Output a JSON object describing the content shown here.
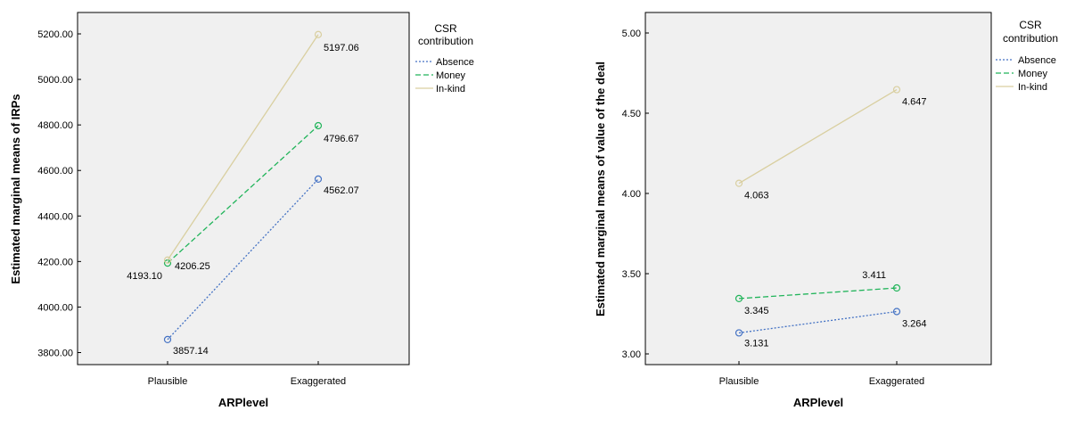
{
  "chart_data": [
    {
      "type": "line",
      "xlabel": "ARPlevel",
      "ylabel": "Estimated marginal means of IRPs",
      "categories": [
        "Plausible",
        "Exaggerated"
      ],
      "ylim": [
        3700,
        5350
      ],
      "yticks": [
        "3800.00",
        "4000.00",
        "4200.00",
        "4400.00",
        "4600.00",
        "4800.00",
        "5000.00",
        "5200.00"
      ],
      "ytick_values": [
        3800,
        4000,
        4200,
        4400,
        4600,
        4800,
        5000,
        5200
      ],
      "grid": false,
      "legend": {
        "title": "CSR contribution",
        "title_lines": [
          "CSR",
          "contribution"
        ],
        "placement": "right"
      },
      "series": [
        {
          "name": "Absence",
          "color": "#4472c4",
          "dash": "dotted",
          "values": [
            3857.14,
            4562.07
          ],
          "labels": [
            "3857.14",
            "4562.07"
          ]
        },
        {
          "name": "Money",
          "color": "#21b45a",
          "dash": "dashed",
          "values": [
            4193.1,
            4796.67
          ],
          "labels": [
            "4193.10",
            "4796.67"
          ]
        },
        {
          "name": "In-kind",
          "color": "#d9cfa0",
          "dash": "solid",
          "values": [
            4206.25,
            5197.06
          ],
          "labels": [
            "4206.25",
            "5197.06"
          ]
        }
      ]
    },
    {
      "type": "line",
      "xlabel": "ARPlevel",
      "ylabel": "Estimated marginal means of value of the deal",
      "categories": [
        "Plausible",
        "Exaggerated"
      ],
      "ylim": [
        2.9,
        5.1
      ],
      "yticks": [
        "3.00",
        "3.50",
        "4.00",
        "4.50",
        "5.00"
      ],
      "ytick_values": [
        3.0,
        3.5,
        4.0,
        4.5,
        5.0
      ],
      "grid": false,
      "legend": {
        "title": "CSR contribution",
        "title_lines": [
          "CSR",
          "contribution"
        ],
        "placement": "right"
      },
      "series": [
        {
          "name": "Absence",
          "color": "#4472c4",
          "dash": "dotted",
          "values": [
            3.131,
            3.264
          ],
          "labels": [
            "3.131",
            "3.264"
          ]
        },
        {
          "name": "Money",
          "color": "#21b45a",
          "dash": "dashed",
          "values": [
            3.345,
            3.411
          ],
          "labels": [
            "3.345",
            "3.411"
          ]
        },
        {
          "name": "In-kind",
          "color": "#d9cfa0",
          "dash": "solid",
          "values": [
            4.063,
            4.647
          ],
          "labels": [
            "4.063",
            "4.647"
          ]
        }
      ]
    }
  ]
}
